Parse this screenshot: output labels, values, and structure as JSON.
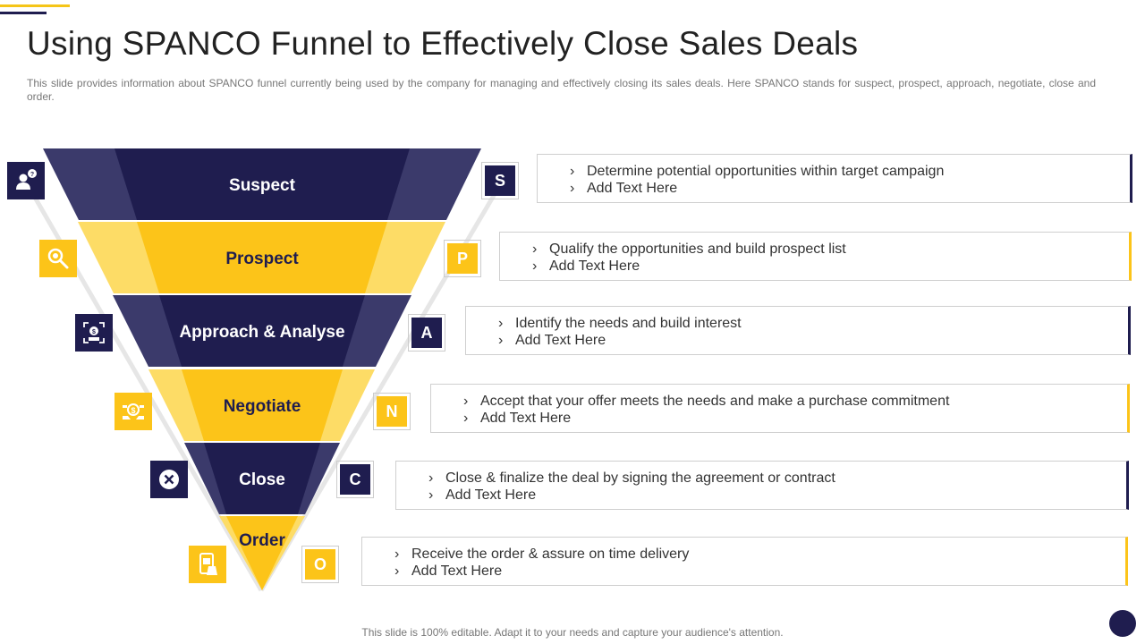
{
  "header": {
    "title": "Using SPANCO Funnel to Effectively Close Sales Deals",
    "subtitle": "This slide provides information about SPANCO funnel currently being used by the company for managing and effectively closing its sales deals. Here SPANCO stands for suspect, prospect, approach, negotiate, close and order."
  },
  "colors": {
    "navy": "#1f1d4f",
    "navy_light": "#3b3a6b",
    "yellow": "#fcc419",
    "yellow_light": "#fddc66"
  },
  "stages": [
    {
      "name": "Suspect",
      "letter": "S",
      "theme": "navy",
      "icon": "user-question-icon",
      "bullets": [
        "Determine potential opportunities within target campaign",
        "Add Text Here"
      ]
    },
    {
      "name": "Prospect",
      "letter": "P",
      "theme": "yellow",
      "icon": "magnifier-search-icon",
      "bullets": [
        "Qualify the opportunities and build prospect list",
        "Add Text Here"
      ]
    },
    {
      "name": "Approach & Analyse",
      "letter": "A",
      "theme": "navy",
      "icon": "money-target-icon",
      "bullets": [
        "Identify the needs and build interest",
        "Add Text Here"
      ]
    },
    {
      "name": "Negotiate",
      "letter": "N",
      "theme": "yellow",
      "icon": "money-exchange-icon",
      "bullets": [
        "Accept that your offer meets the needs and make a purchase commitment",
        "Add Text Here"
      ]
    },
    {
      "name": "Close",
      "letter": "C",
      "theme": "navy",
      "icon": "close-circle-icon",
      "bullets": [
        "Close & finalize the deal by signing the agreement or contract",
        "Add Text Here"
      ]
    },
    {
      "name": "Order",
      "letter": "O",
      "theme": "yellow",
      "icon": "mobile-order-icon",
      "bullets": [
        "Receive the order & assure on time delivery",
        "Add Text Here"
      ]
    }
  ],
  "footer": {
    "note": "This slide is 100% editable. Adapt it to your needs and capture your audience's attention."
  }
}
